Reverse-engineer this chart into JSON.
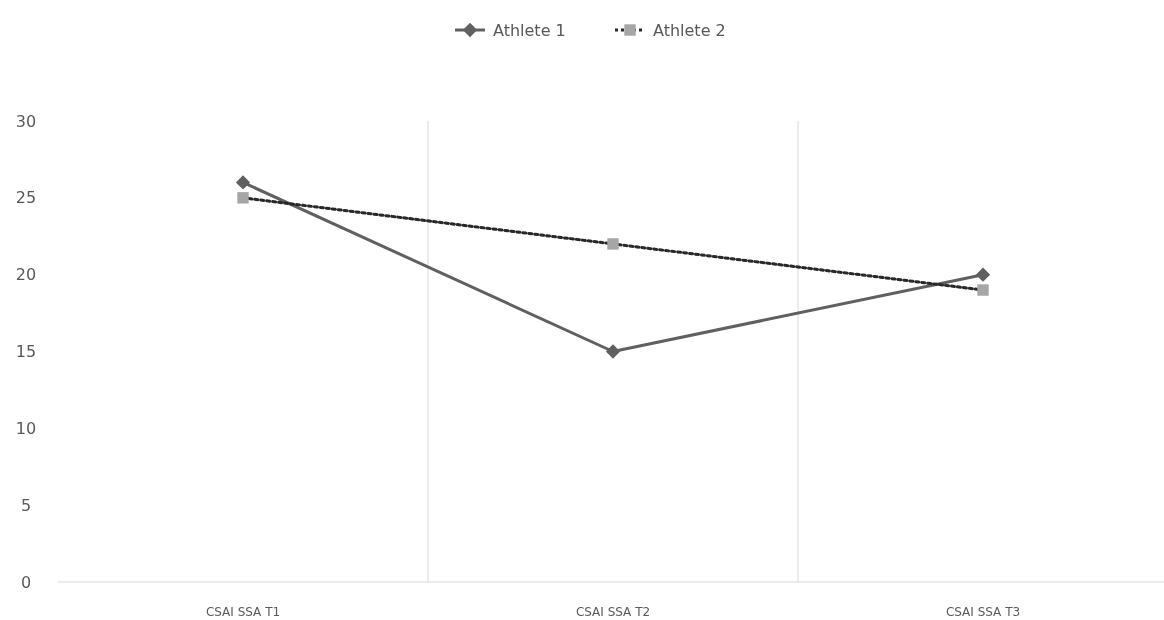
{
  "chart_data": {
    "type": "line",
    "categories": [
      "CSAI SSA T1",
      "CSAI SSA T2",
      "CSAI SSA T3"
    ],
    "series": [
      {
        "name": "Athlete 1",
        "color": "#606060",
        "values": [
          26,
          15,
          20
        ],
        "marker": "diamond",
        "line_style": "solid"
      },
      {
        "name": "Athlete 2",
        "color": "#a6a6a6",
        "values": [
          25,
          22,
          19
        ],
        "marker": "square",
        "line_style": "dotted"
      }
    ],
    "ylim": [
      0,
      30
    ],
    "yticks": [
      0,
      5,
      10,
      15,
      20,
      25,
      30
    ],
    "grid": "x",
    "legend": "top"
  }
}
